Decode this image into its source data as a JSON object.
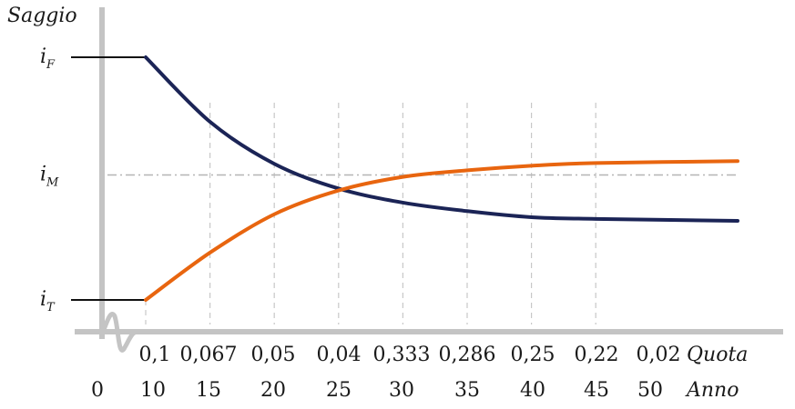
{
  "chart_data": {
    "type": "line",
    "title": "",
    "ylabel": "Saggio",
    "y_levels": [
      {
        "symbol": "i",
        "subscript": "F",
        "role": "upper"
      },
      {
        "symbol": "i",
        "subscript": "M",
        "role": "middle"
      },
      {
        "symbol": "i",
        "subscript": "T",
        "role": "lower"
      }
    ],
    "x_axis_rows": [
      {
        "label": "Quota",
        "ticks": [
          "0,1",
          "0,067",
          "0,05",
          "0,04",
          "0,333",
          "0,286",
          "0,25",
          "0,22",
          "0,02"
        ]
      },
      {
        "label": "Anno",
        "ticks": [
          "0",
          "10",
          "15",
          "20",
          "25",
          "30",
          "35",
          "40",
          "45",
          "50"
        ]
      }
    ],
    "x": [
      10,
      15,
      20,
      25,
      30,
      35,
      40,
      45,
      50
    ],
    "ylim": [
      0,
      1
    ],
    "series": [
      {
        "color": "#1b2456",
        "values": [
          1.0,
          0.734,
          0.561,
          0.459,
          0.401,
          0.366,
          0.341,
          0.334,
          0.326
        ],
        "prefix": {
          "from_x": 0,
          "value": 1.0
        }
      },
      {
        "color": "#e8650f",
        "values": [
          0.0,
          0.195,
          0.353,
          0.451,
          0.507,
          0.534,
          0.553,
          0.564,
          0.572
        ],
        "prefix": {
          "from_x": 0,
          "value": 0.0
        }
      }
    ],
    "reference_line": {
      "value": 0.515,
      "style": "dash-dot",
      "color": "#b5b5b5"
    },
    "grid": {
      "vertical": "dashed",
      "color": "#c8c8c8"
    },
    "axis_color": "#c4c4c4"
  }
}
